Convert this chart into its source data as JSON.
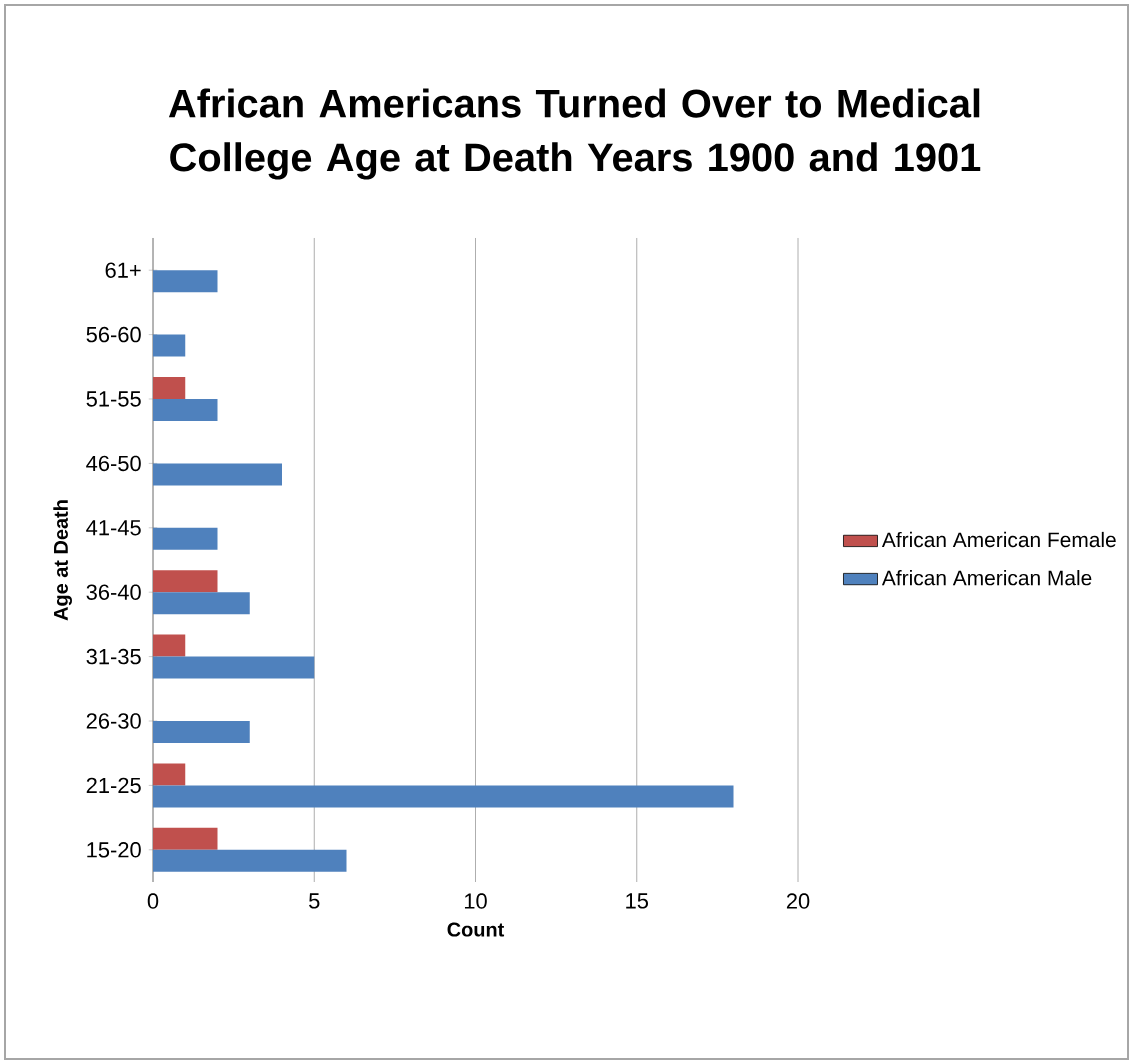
{
  "chart_data": {
    "type": "bar",
    "orientation": "horizontal",
    "title": "African Americans Turned Over to Medical College Age at Death Years 1900 and 1901",
    "xlabel": "Count",
    "ylabel": "Age at Death",
    "categories": [
      "61+",
      "56-60",
      "51-55",
      "46-50",
      "41-45",
      "36-40",
      "31-35",
      "26-30",
      "21-25",
      "15-20"
    ],
    "series": [
      {
        "name": "African American Female",
        "color": "#c0504d",
        "values": [
          0,
          0,
          1,
          0,
          0,
          2,
          1,
          0,
          1,
          2
        ]
      },
      {
        "name": "African American Male",
        "color": "#4f81bd",
        "values": [
          2,
          1,
          2,
          4,
          2,
          3,
          5,
          3,
          18,
          6
        ]
      }
    ],
    "xlim": [
      0,
      20
    ],
    "xticks": [
      0,
      5,
      10,
      15,
      20
    ],
    "grid": "x",
    "legend": "right"
  }
}
